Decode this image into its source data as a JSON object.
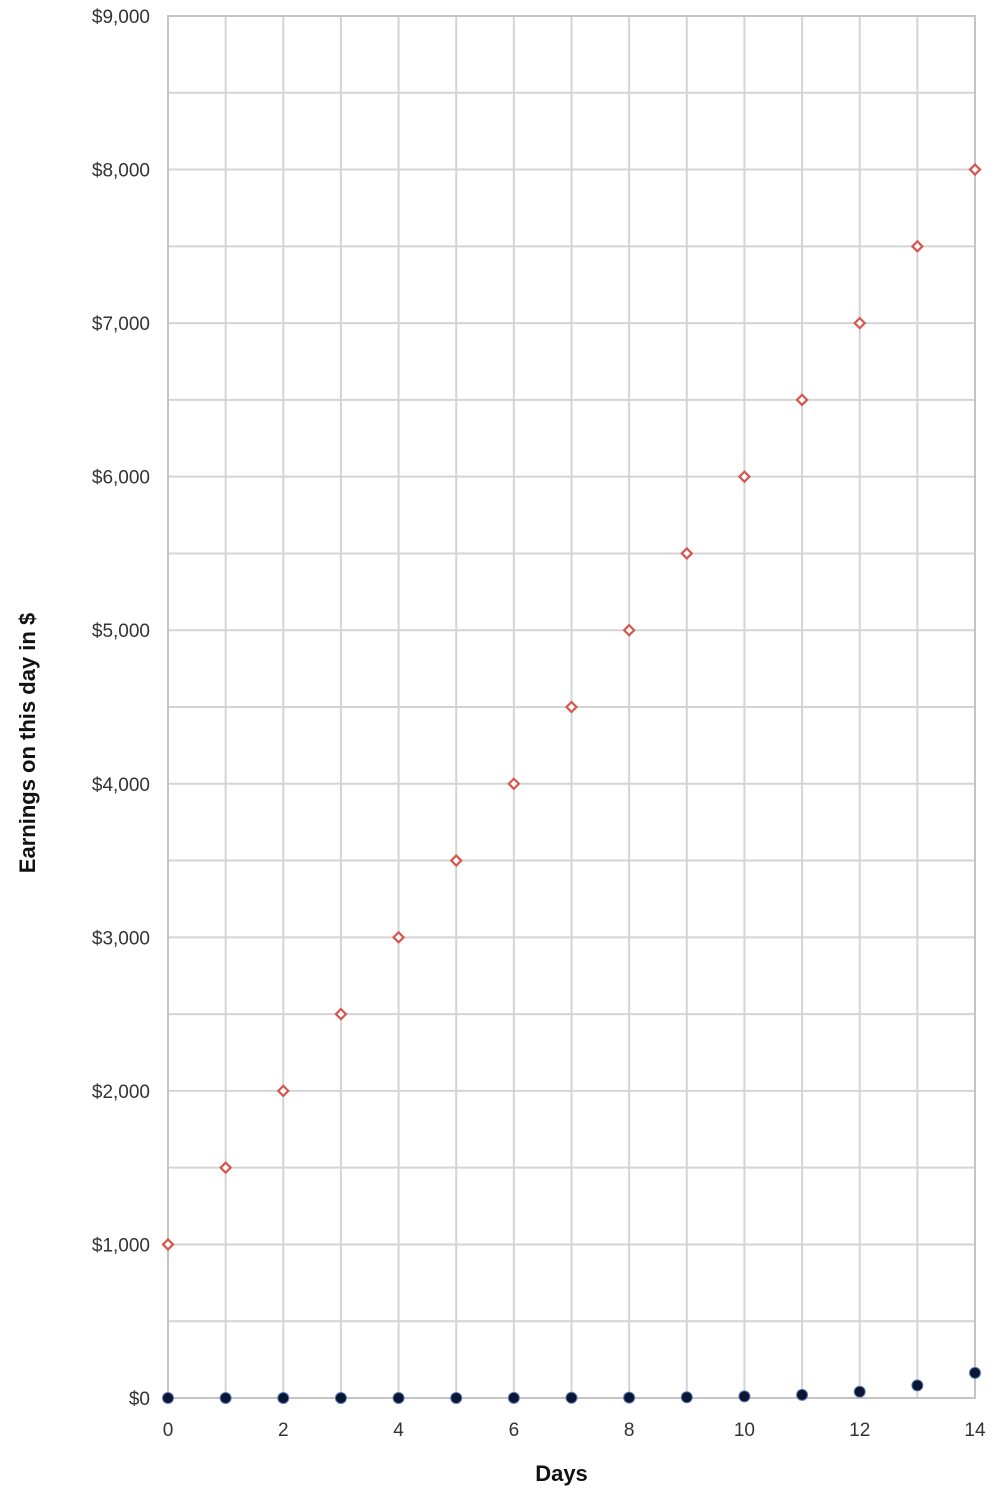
{
  "chart_data": {
    "type": "scatter",
    "title": "",
    "xlabel": "Days",
    "ylabel": "Earnings on this day in $",
    "xlim": [
      0,
      14
    ],
    "ylim": [
      0,
      9000
    ],
    "x_ticks": [
      0,
      2,
      4,
      6,
      8,
      10,
      12,
      14
    ],
    "x_tick_labels": [
      "0",
      "2",
      "4",
      "6",
      "8",
      "10",
      "12",
      "14"
    ],
    "y_ticks": [
      0,
      1000,
      2000,
      3000,
      4000,
      5000,
      6000,
      7000,
      8000,
      9000
    ],
    "y_tick_labels": [
      "$0",
      "$1,000",
      "$2,000",
      "$3,000",
      "$4,000",
      "$5,000",
      "$6,000",
      "$7,000",
      "$8,000",
      "$9,000"
    ],
    "grid": true,
    "legend": "none",
    "series": [
      {
        "marker": "diamond",
        "color": "#d9534f",
        "x": [
          0,
          1,
          2,
          3,
          4,
          5,
          6,
          7,
          8,
          9,
          10,
          11,
          12,
          13,
          14
        ],
        "values": [
          1000,
          1500,
          2000,
          2500,
          3000,
          3500,
          4000,
          4500,
          5000,
          5500,
          6000,
          6500,
          7000,
          7500,
          8000
        ]
      },
      {
        "marker": "circle",
        "color": "#0a1633",
        "x": [
          0,
          1,
          2,
          3,
          4,
          5,
          6,
          7,
          8,
          9,
          10,
          11,
          12,
          13,
          14
        ],
        "values": [
          0.01,
          0.02,
          0.04,
          0.08,
          0.16,
          0.32,
          0.64,
          1.28,
          2.56,
          5.12,
          10.24,
          20.48,
          40.96,
          81.92,
          163.84
        ]
      }
    ]
  }
}
